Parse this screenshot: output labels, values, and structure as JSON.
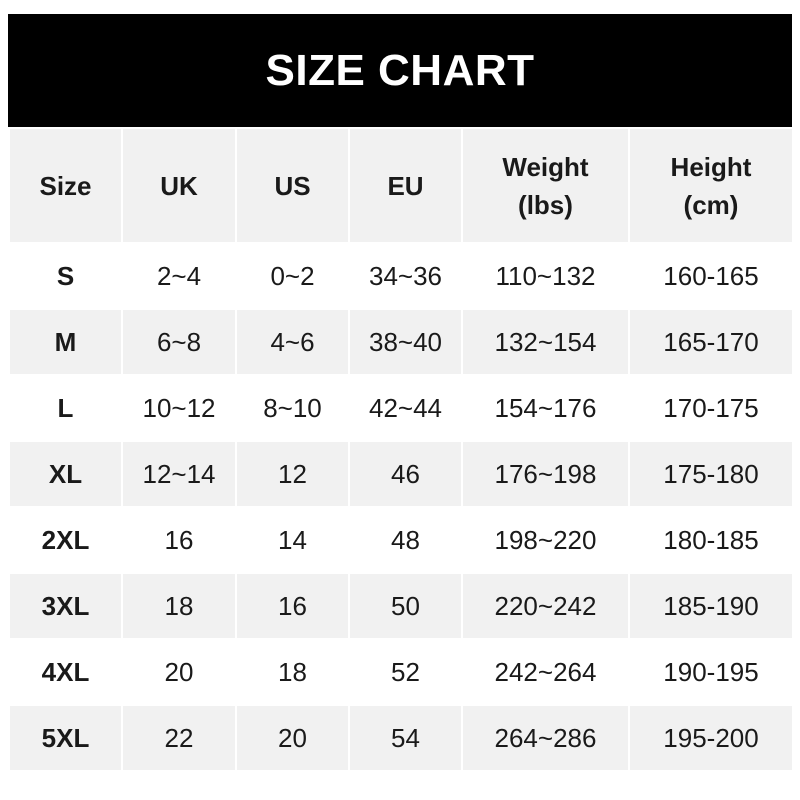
{
  "title": "SIZE CHART",
  "headers": [
    [
      "Size"
    ],
    [
      "UK"
    ],
    [
      "US"
    ],
    [
      "EU"
    ],
    [
      "Weight",
      "(lbs)"
    ],
    [
      "Height",
      "(cm)"
    ]
  ],
  "rows": [
    [
      "S",
      "2~4",
      "0~2",
      "34~36",
      "110~132",
      "160-165"
    ],
    [
      "M",
      "6~8",
      "4~6",
      "38~40",
      "132~154",
      "165-170"
    ],
    [
      "L",
      "10~12",
      "8~10",
      "42~44",
      "154~176",
      "170-175"
    ],
    [
      "XL",
      "12~14",
      "12",
      "46",
      "176~198",
      "175-180"
    ],
    [
      "2XL",
      "16",
      "14",
      "48",
      "198~220",
      "180-185"
    ],
    [
      "3XL",
      "18",
      "16",
      "50",
      "220~242",
      "185-190"
    ],
    [
      "4XL",
      "20",
      "18",
      "52",
      "242~264",
      "190-195"
    ],
    [
      "5XL",
      "22",
      "20",
      "54",
      "264~286",
      "195-200"
    ]
  ]
}
